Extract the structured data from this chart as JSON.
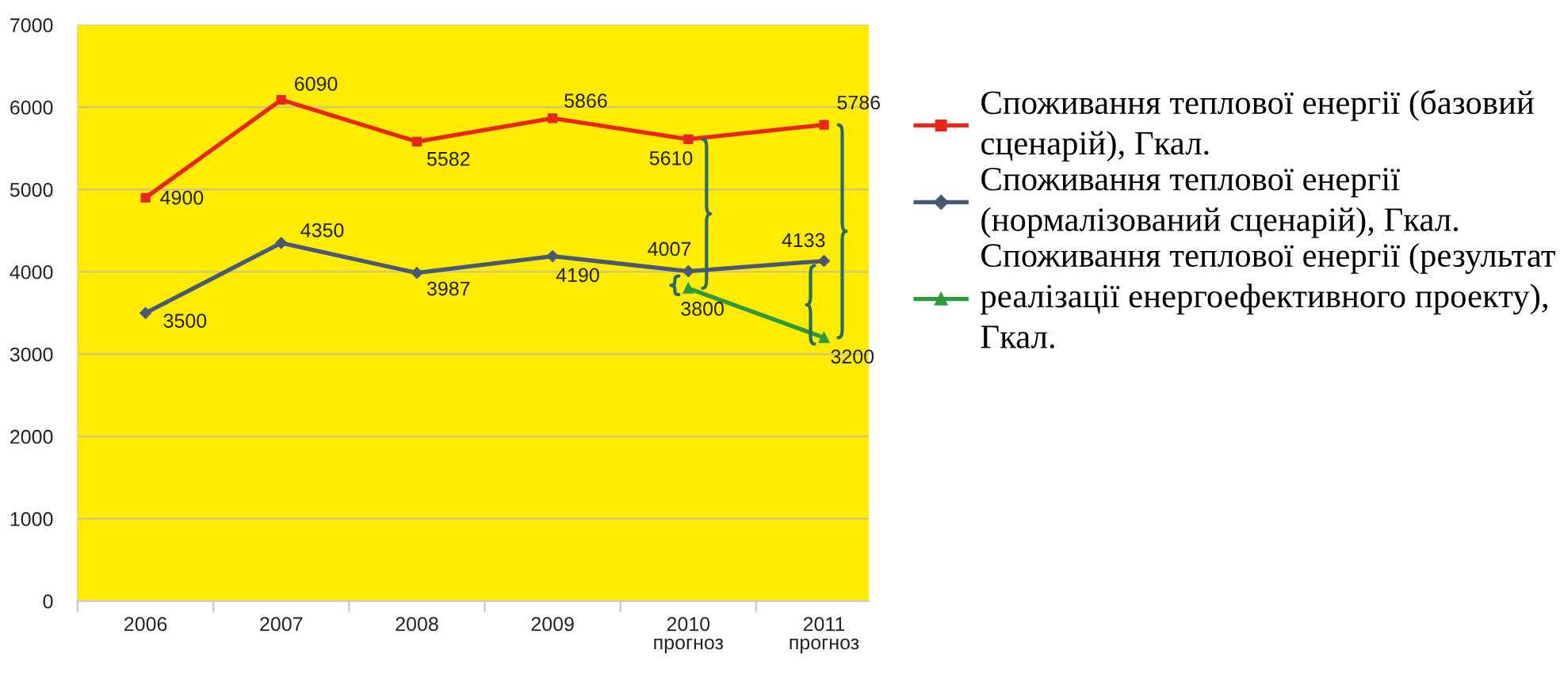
{
  "chart_data": {
    "type": "line",
    "categories": [
      "2006",
      "2007",
      "2008",
      "2009",
      "2010\nпрогноз",
      "2011\nпрогноз"
    ],
    "series": [
      {
        "name": "Споживання теплової енергії (базовий сценарій), Гкал.",
        "color": "#e8261c",
        "marker": "square",
        "values": [
          4900,
          6090,
          5582,
          5866,
          5610,
          5786
        ]
      },
      {
        "name": "Споживання теплової енергії (нормалізований сценарій), Гкал.",
        "color": "#4a5878",
        "marker": "diamond",
        "values": [
          3500,
          4350,
          3987,
          4190,
          4007,
          4133
        ]
      },
      {
        "name": "Споживання теплової енергії (результат реалізації енергоефективного проекту), Гкал.",
        "color": "#2f9a3c",
        "marker": "triangle",
        "values": [
          null,
          null,
          null,
          null,
          3800,
          3200
        ]
      }
    ],
    "ylim": [
      0,
      7000
    ],
    "yticks": [
      0,
      1000,
      2000,
      3000,
      4000,
      5000,
      6000,
      7000
    ],
    "grid": "y",
    "legend": "right",
    "data_labels": true,
    "line_style": "solid"
  }
}
